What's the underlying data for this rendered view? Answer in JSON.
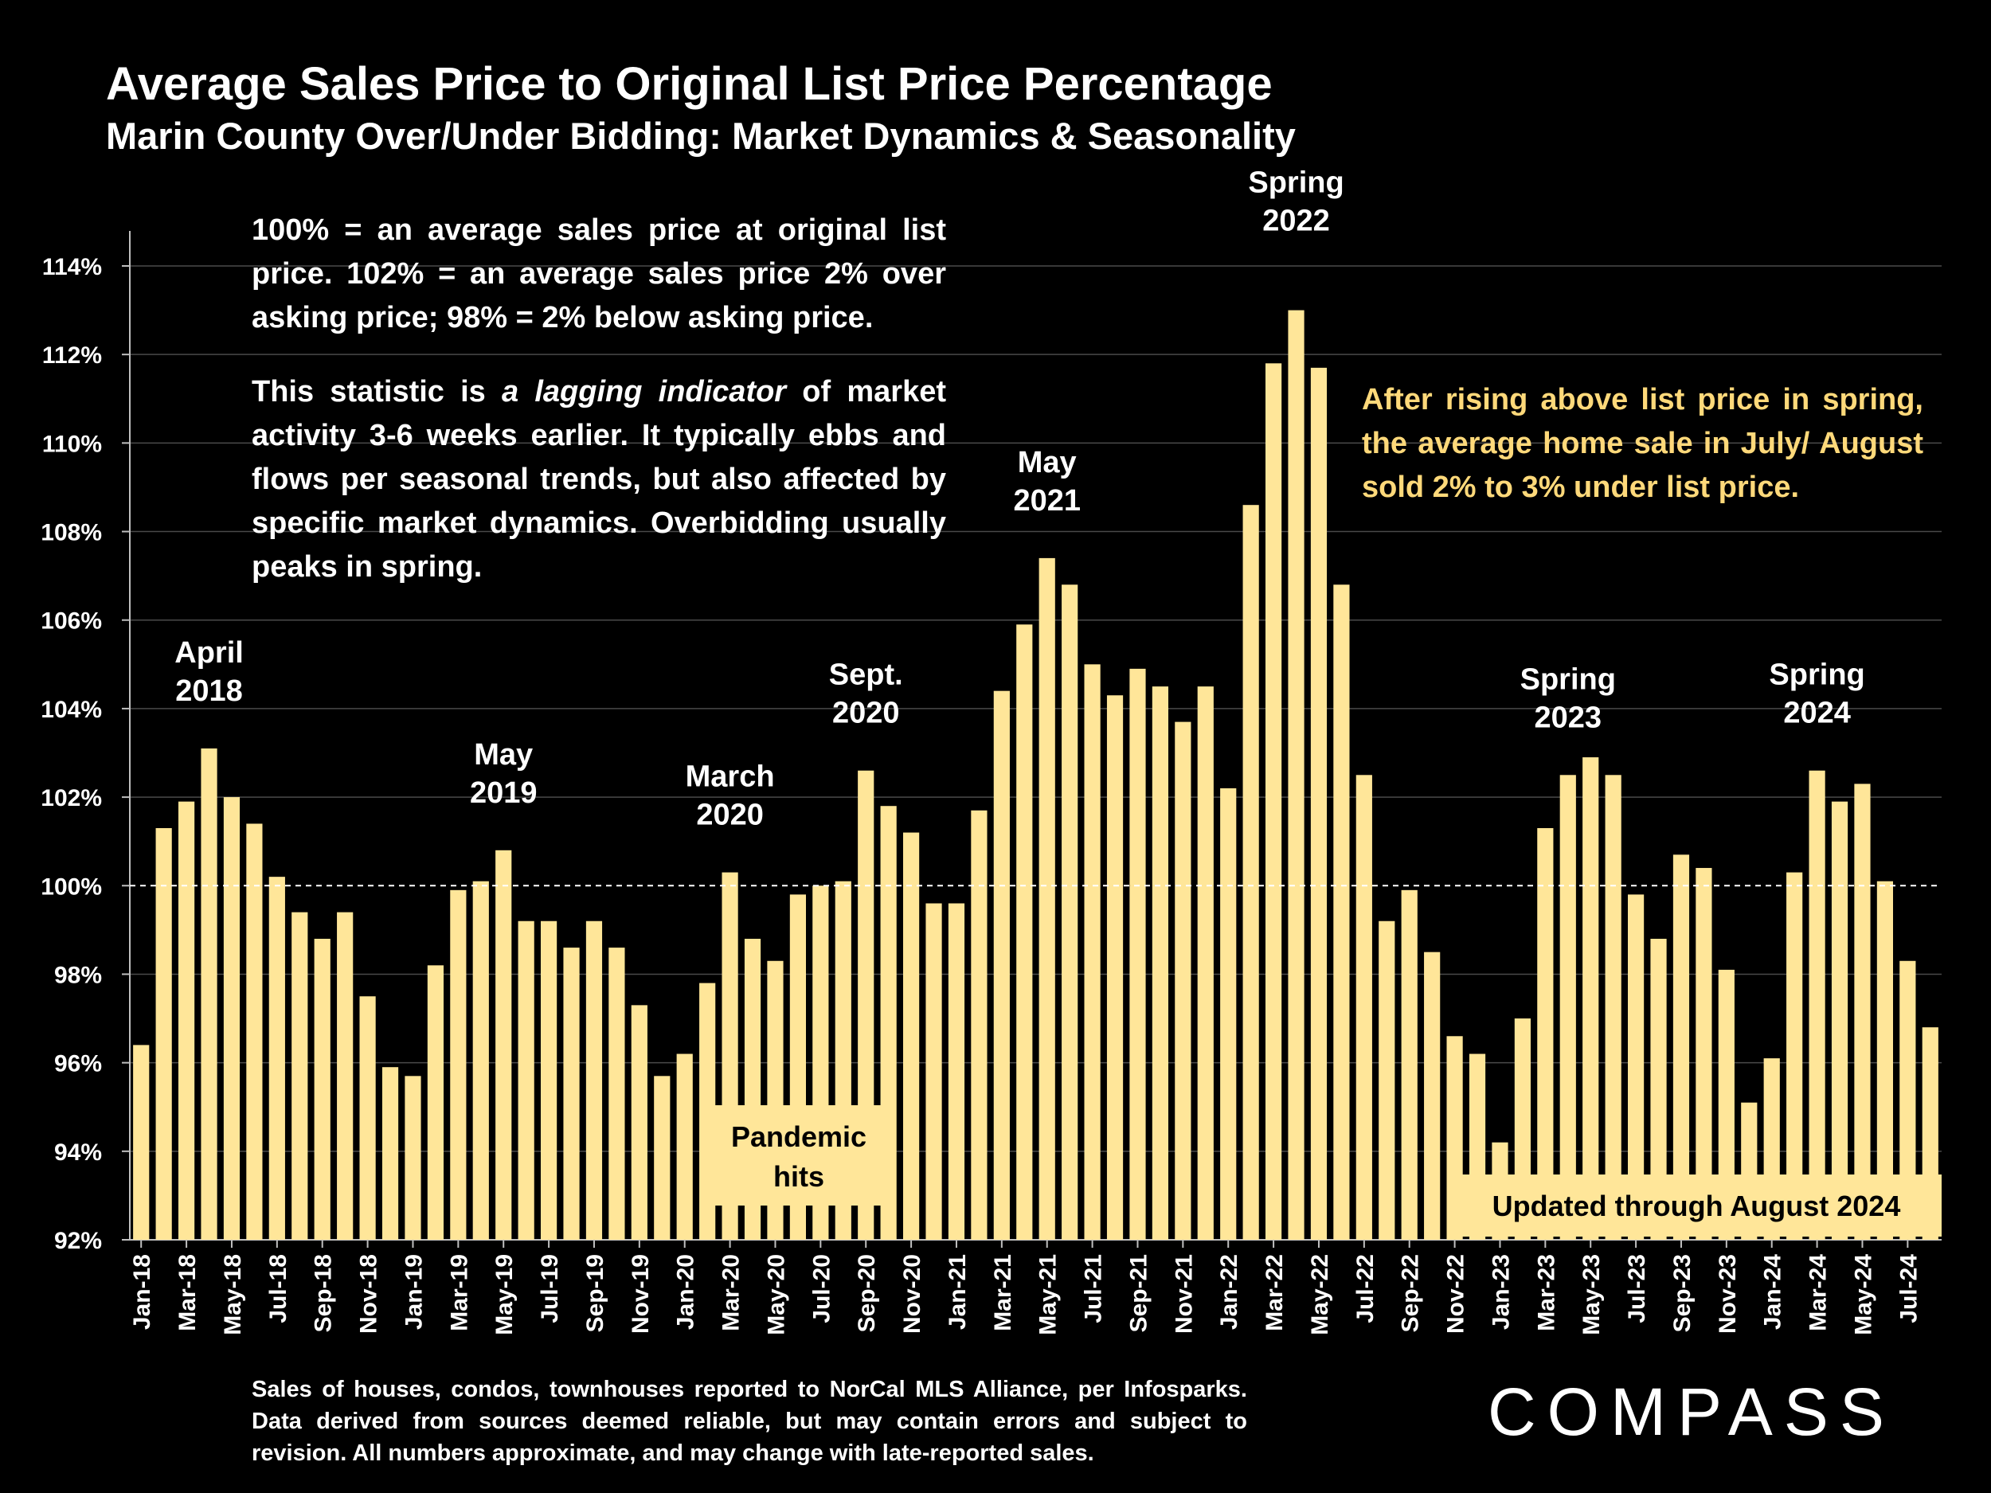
{
  "title": "Average Sales Price to Original List Price Percentage",
  "subtitle": "Marin County Over/Under Bidding: Market Dynamics & Seasonality",
  "notes": {
    "definition": "100% = an average sales price at original list price. 102% = an average sales price 2% over asking price; 98% = 2% below asking price.",
    "lagging_before": "This statistic is ",
    "lagging_emphasis": "a lagging indicator",
    "lagging_after": " of market activity 3-6 weeks earlier. It typically ebbs and flows per seasonal trends, but also affected by specific market dynamics. Overbidding usually peaks in spring.",
    "summary": "After rising above list price in spring, the average home sale in July/ August sold 2% to 3% under list price."
  },
  "footer": "Sales of houses, condos, townhouses reported to NorCal MLS Alliance, per Infosparks. Data derived from sources deemed reliable, but may contain errors and subject to revision. All numbers approximate, and may change with late-reported sales.",
  "logo": "COMPASS",
  "colors": {
    "bar": "#ffe699",
    "background": "#000000",
    "summary_text": "#ffd97a",
    "label_box": "#ffe699"
  },
  "chart_data": {
    "type": "bar",
    "title": "Average Sales Price to Original List Price Percentage",
    "ylabel": "",
    "xlabel": "",
    "ylim": [
      92,
      114
    ],
    "yticks": [
      92,
      94,
      96,
      98,
      100,
      102,
      104,
      106,
      108,
      110,
      112,
      114
    ],
    "ytick_suffix": "%",
    "reference_line": 100,
    "categories": [
      "Jan-18",
      "Feb-18",
      "Mar-18",
      "Apr-18",
      "May-18",
      "Jun-18",
      "Jul-18",
      "Aug-18",
      "Sep-18",
      "Oct-18",
      "Nov-18",
      "Dec-18",
      "Jan-19",
      "Feb-19",
      "Mar-19",
      "Apr-19",
      "May-19",
      "Jun-19",
      "Jul-19",
      "Aug-19",
      "Sep-19",
      "Oct-19",
      "Nov-19",
      "Dec-19",
      "Jan-20",
      "Feb-20",
      "Mar-20",
      "Apr-20",
      "May-20",
      "Jun-20",
      "Jul-20",
      "Aug-20",
      "Sep-20",
      "Oct-20",
      "Nov-20",
      "Dec-20",
      "Jan-21",
      "Feb-21",
      "Mar-21",
      "Apr-21",
      "May-21",
      "Jun-21",
      "Jul-21",
      "Aug-21",
      "Sep-21",
      "Oct-21",
      "Nov-21",
      "Dec-21",
      "Jan-22",
      "Feb-22",
      "Mar-22",
      "Apr-22",
      "May-22",
      "Jun-22",
      "Jul-22",
      "Aug-22",
      "Sep-22",
      "Oct-22",
      "Nov-22",
      "Dec-22",
      "Jan-23",
      "Feb-23",
      "Mar-23",
      "Apr-23",
      "May-23",
      "Jun-23",
      "Jul-23",
      "Aug-23",
      "Sep-23",
      "Oct-23",
      "Nov-23",
      "Dec-23",
      "Jan-24",
      "Feb-24",
      "Mar-24",
      "Apr-24",
      "May-24",
      "Jun-24",
      "Jul-24",
      "Aug-24"
    ],
    "values": [
      96.4,
      101.3,
      101.9,
      103.1,
      102.0,
      101.4,
      100.2,
      99.4,
      98.8,
      99.4,
      97.5,
      95.9,
      95.7,
      98.2,
      99.9,
      100.1,
      100.8,
      99.2,
      99.2,
      98.6,
      99.2,
      98.6,
      97.3,
      95.7,
      96.2,
      97.8,
      100.3,
      98.8,
      98.3,
      99.8,
      100.0,
      100.1,
      102.6,
      101.8,
      101.2,
      99.6,
      99.6,
      101.7,
      104.4,
      105.9,
      107.4,
      106.8,
      105.0,
      104.3,
      104.9,
      104.5,
      103.7,
      104.5,
      102.2,
      108.6,
      111.8,
      113.0,
      111.7,
      106.8,
      102.5,
      99.2,
      99.9,
      98.5,
      96.6,
      96.2,
      94.2,
      97.0,
      101.3,
      102.5,
      102.9,
      102.5,
      99.8,
      98.8,
      100.7,
      100.4,
      98.1,
      95.1,
      96.1,
      100.3,
      102.6,
      101.9,
      102.3,
      100.1,
      98.3,
      96.8
    ],
    "xtick_labels": [
      "Jan-18",
      "Mar-18",
      "May-18",
      "Jul-18",
      "Sep-18",
      "Nov-18",
      "Jan-19",
      "Mar-19",
      "May-19",
      "Jul-19",
      "Sep-19",
      "Nov-19",
      "Jan-20",
      "Mar-20",
      "May-20",
      "Jul-20",
      "Sep-20",
      "Nov-20",
      "Jan-21",
      "Mar-21",
      "May-21",
      "Jul-21",
      "Sep-21",
      "Nov-21",
      "Jan-22",
      "Mar-22",
      "May-22",
      "Jul-22",
      "Sep-22",
      "Nov-22",
      "Jan-23",
      "Mar-23",
      "May-23",
      "Jul-23",
      "Sep-23",
      "Nov-23",
      "Jan-24",
      "Mar-24",
      "May-24",
      "Jul-24"
    ],
    "annotations": [
      {
        "lines": [
          "April",
          "2018"
        ],
        "category": "Apr-18"
      },
      {
        "lines": [
          "May",
          "2019"
        ],
        "category": "May-19"
      },
      {
        "lines": [
          "March",
          "2020"
        ],
        "category": "Mar-20"
      },
      {
        "lines": [
          "Sept.",
          "2020"
        ],
        "category": "Sep-20"
      },
      {
        "lines": [
          "May",
          "2021"
        ],
        "category": "May-21"
      },
      {
        "lines": [
          "Spring",
          "2022"
        ],
        "category": "Apr-22"
      },
      {
        "lines": [
          "Spring",
          "2023"
        ],
        "category": "Apr-23"
      },
      {
        "lines": [
          "Spring",
          "2024"
        ],
        "category": "Mar-24"
      }
    ],
    "boxed_labels": {
      "pandemic": [
        "Pandemic",
        "hits"
      ],
      "updated": "Updated through August 2024"
    }
  }
}
